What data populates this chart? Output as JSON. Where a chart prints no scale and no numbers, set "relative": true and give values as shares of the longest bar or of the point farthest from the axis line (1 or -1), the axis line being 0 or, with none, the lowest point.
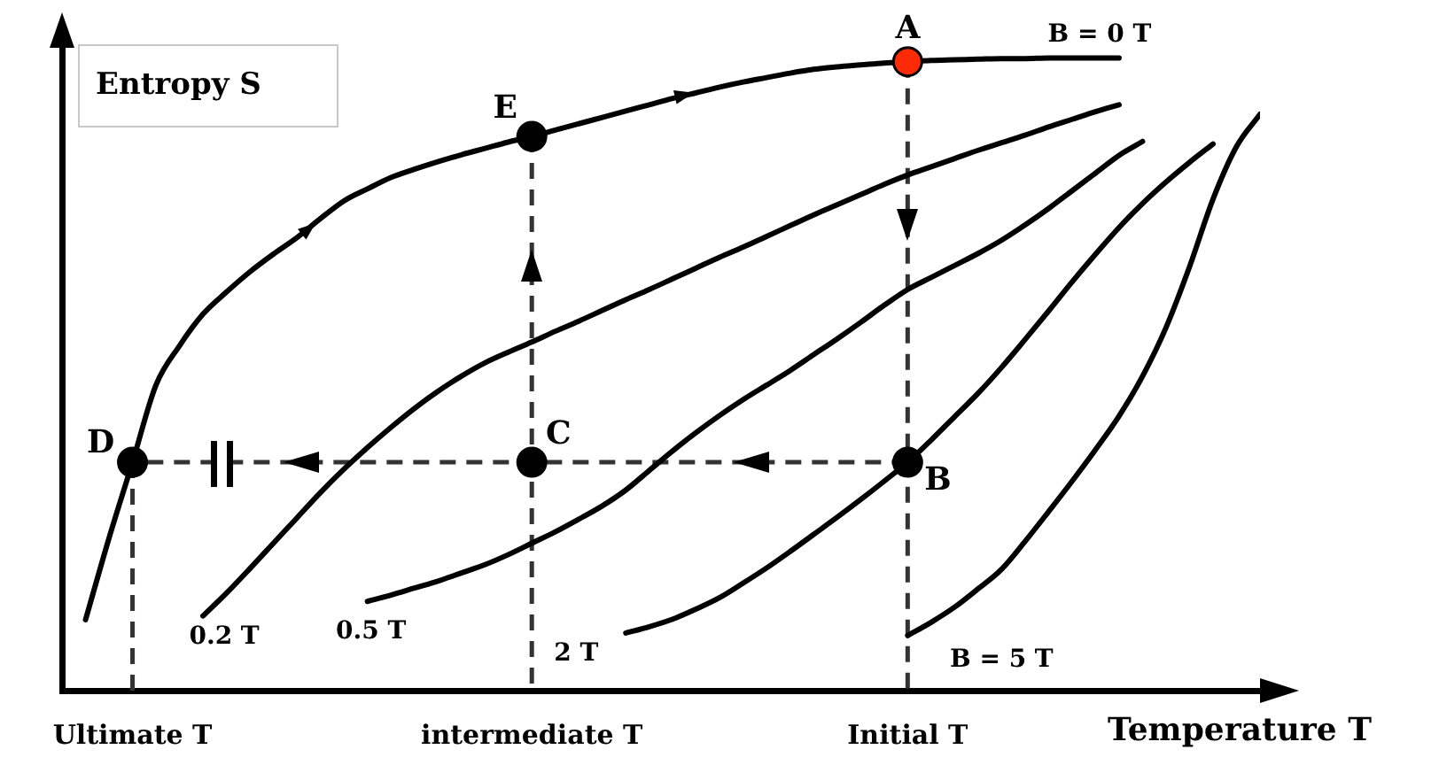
{
  "chart_data": {
    "type": "line",
    "relative": true,
    "xlabel": "Temperature T",
    "ylabel": "Entropy S",
    "tick_labels": "x",
    "categories": [
      null,
      null,
      null,
      "Ultimate T",
      null,
      null,
      null,
      null,
      null,
      null,
      null,
      null,
      null,
      null,
      null,
      null,
      null,
      null,
      null,
      null,
      "intermediate T",
      null,
      null,
      null,
      null,
      null,
      null,
      null,
      null,
      null,
      null,
      null,
      null,
      null,
      null,
      null,
      "Initial T",
      null,
      null,
      null,
      null,
      null,
      null,
      null,
      null,
      null,
      null,
      null,
      null,
      null,
      null,
      null
    ],
    "series": [
      {
        "name": "B = 0 T",
        "color": "#000000",
        "values": [
          null,
          0.112,
          0.241,
          0.361,
          0.483,
          0.545,
          0.595,
          0.63,
          0.662,
          0.69,
          0.716,
          0.746,
          0.774,
          0.793,
          0.811,
          0.824,
          0.836,
          0.847,
          0.857,
          0.867,
          0.876,
          0.886,
          0.896,
          0.906,
          0.916,
          0.926,
          0.936,
          0.945,
          0.954,
          0.962,
          0.969,
          0.976,
          0.982,
          0.986,
          0.989,
          0.992,
          0.994,
          0.996,
          0.997,
          0.998,
          0.999,
          0.999,
          1,
          1,
          1,
          1,
          null,
          null,
          null,
          null,
          null,
          null
        ]
      },
      {
        "name": "0.2 T",
        "color": "#000000",
        "values": [
          null,
          null,
          null,
          null,
          null,
          null,
          0.118,
          0.154,
          0.193,
          0.233,
          0.273,
          0.313,
          0.35,
          0.384,
          0.416,
          0.446,
          0.473,
          0.497,
          0.518,
          0.535,
          0.551,
          0.568,
          0.584,
          0.601,
          0.618,
          0.634,
          0.651,
          0.668,
          0.685,
          0.701,
          0.718,
          0.735,
          0.752,
          0.768,
          0.784,
          0.8,
          0.815,
          0.828,
          0.841,
          0.854,
          0.866,
          0.878,
          0.891,
          0.903,
          0.915,
          0.926,
          null,
          null,
          null,
          null,
          null,
          null
        ]
      },
      {
        "name": "0.5 T",
        "color": "#000000",
        "values": [
          null,
          null,
          null,
          null,
          null,
          null,
          null,
          null,
          null,
          null,
          null,
          null,
          null,
          0.141,
          0.151,
          0.162,
          0.173,
          0.186,
          0.199,
          0.215,
          0.233,
          0.251,
          0.271,
          0.292,
          0.317,
          0.348,
          0.379,
          0.408,
          0.435,
          0.46,
          0.483,
          0.506,
          0.531,
          0.556,
          0.582,
          0.609,
          0.634,
          0.653,
          0.672,
          0.691,
          0.712,
          0.736,
          0.762,
          0.79,
          0.818,
          0.846,
          0.868,
          null,
          null,
          null,
          null,
          null
        ]
      },
      {
        "name": "2 T",
        "color": "#000000",
        "values": [
          null,
          null,
          null,
          null,
          null,
          null,
          null,
          null,
          null,
          null,
          null,
          null,
          null,
          null,
          null,
          null,
          null,
          null,
          null,
          null,
          null,
          null,
          null,
          null,
          0.091,
          0.101,
          0.113,
          0.129,
          0.147,
          0.17,
          0.194,
          0.22,
          0.247,
          0.274,
          0.302,
          0.331,
          0.361,
          0.396,
          0.433,
          0.47,
          0.511,
          0.555,
          0.6,
          0.646,
          0.69,
          0.732,
          0.77,
          0.804,
          0.835,
          0.864,
          null,
          null
        ]
      },
      {
        "name": "B = 5 T",
        "color": "#000000",
        "values": [
          null,
          null,
          null,
          null,
          null,
          null,
          null,
          null,
          null,
          null,
          null,
          null,
          null,
          null,
          null,
          null,
          null,
          null,
          null,
          null,
          null,
          null,
          null,
          null,
          null,
          null,
          null,
          null,
          null,
          null,
          null,
          null,
          null,
          null,
          null,
          null,
          0.087,
          0.108,
          0.132,
          0.161,
          0.192,
          0.236,
          0.283,
          0.331,
          0.381,
          0.434,
          0.497,
          0.574,
          0.67,
          0.777,
          0.86,
          0.911
        ]
      },
      {
        "color": "#333333",
        "line_style": "dashed",
        "x": [
          "Initial T",
          "Initial T"
        ],
        "values": [
          0.994,
          0
        ]
      },
      {
        "color": "#333333",
        "line_style": "dashed",
        "x": [
          "intermediate T",
          "intermediate T"
        ],
        "values": [
          0.876,
          0
        ]
      },
      {
        "color": "#333333",
        "line_style": "dashed",
        "x": [
          "Ultimate T",
          "Ultimate T"
        ],
        "values": [
          0.361,
          0
        ]
      },
      {
        "color": "#333333",
        "line_style": "dashed",
        "x": [
          "Initial T",
          "intermediate T",
          "Ultimate T"
        ],
        "values": [
          0.361,
          0.361,
          0.361
        ]
      },
      {
        "type": "scatter",
        "marker": "circle",
        "color": "#000000",
        "colors": [
          "#ff2b06",
          "#000000",
          "#000000",
          "#000000",
          "#000000"
        ],
        "x": [
          "Initial T",
          "Initial T",
          "intermediate T",
          "Ultimate T",
          "intermediate T"
        ],
        "values": [
          0.994,
          0.361,
          0.361,
          0.361,
          0.876
        ]
      }
    ],
    "annotations": [
      {
        "text": "A",
        "x": "Initial T",
        "y": 0.994
      },
      {
        "text": "B",
        "x": "Initial T",
        "y": 0.361
      },
      {
        "text": "C",
        "x": "intermediate T",
        "y": 0.361
      },
      {
        "text": "D",
        "x": "Ultimate T",
        "y": 0.361
      },
      {
        "text": "E",
        "x": "intermediate T",
        "y": 0.876
      }
    ]
  }
}
